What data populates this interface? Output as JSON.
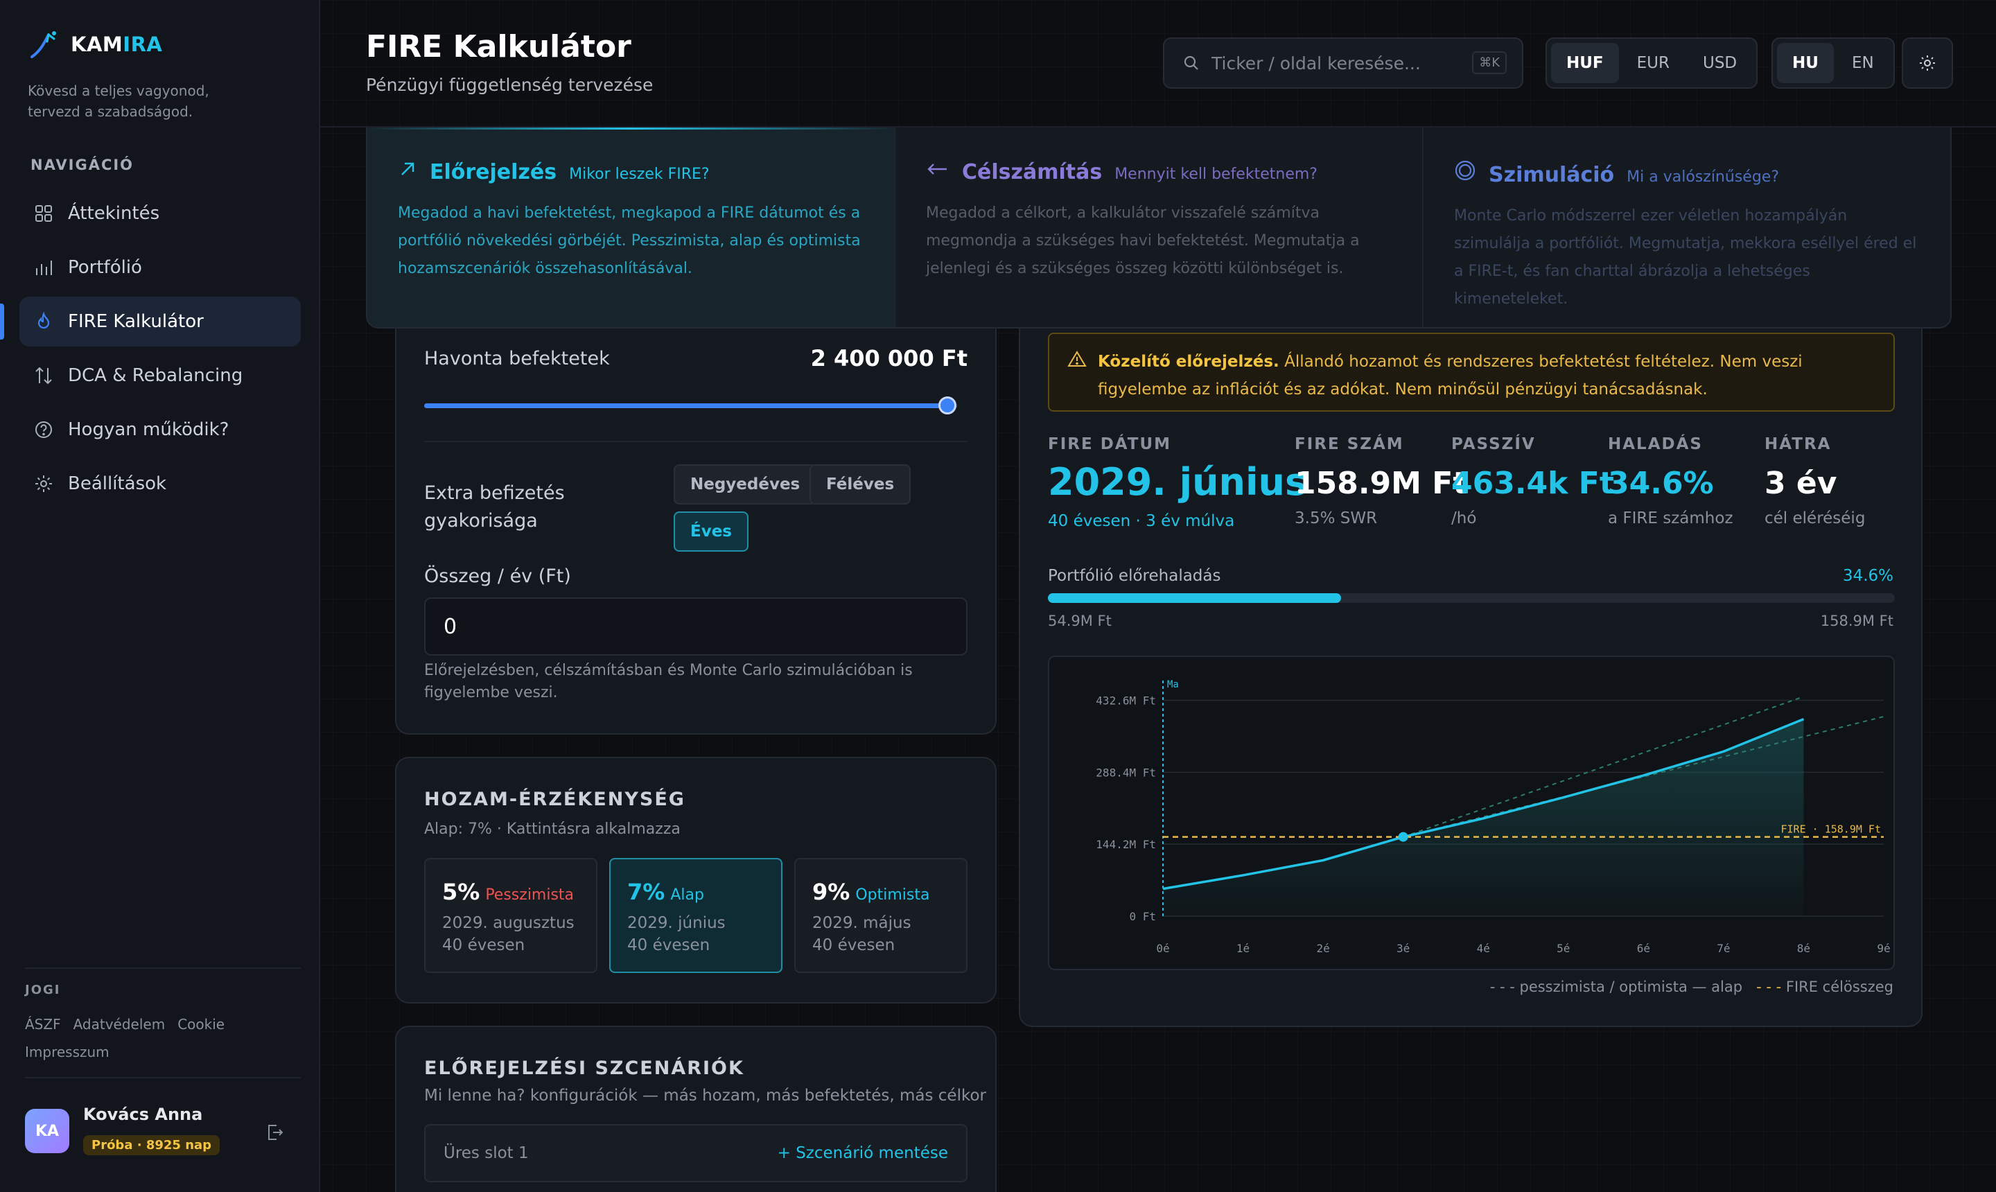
{
  "brand": {
    "name_a": "KAM",
    "name_b": "IRA",
    "tagline": "Kövesd a teljes vagyonod, tervezd a szabadságod."
  },
  "nav": {
    "title": "NAVIGÁCIÓ",
    "items": [
      {
        "label": "Áttekintés",
        "icon": "grid-icon"
      },
      {
        "label": "Portfólió",
        "icon": "bar-chart-icon"
      },
      {
        "label": "FIRE Kalkulátor",
        "icon": "flame-icon",
        "active": true
      },
      {
        "label": "DCA & Rebalancing",
        "icon": "arrows-icon"
      },
      {
        "label": "Hogyan működik?",
        "icon": "help-icon"
      },
      {
        "label": "Beállítások",
        "icon": "gear-icon"
      }
    ]
  },
  "legal": {
    "title": "JOGI",
    "links": [
      "ÁSZF",
      "Adatvédelem",
      "Cookie",
      "Impresszum"
    ]
  },
  "user": {
    "initials": "KA",
    "name": "Kovács Anna",
    "badge": "Próba · 8925 nap"
  },
  "header": {
    "title": "FIRE Kalkulátor",
    "subtitle": "Pénzügyi függetlenség tervezése",
    "search_placeholder": "Ticker / oldal keresése...",
    "search_kbd": "⌘K",
    "currencies": [
      "HUF",
      "EUR",
      "USD"
    ],
    "currency_selected": "HUF",
    "languages": [
      "HU",
      "EN"
    ],
    "language_selected": "HU"
  },
  "modes": [
    {
      "title": "Előrejelzés",
      "question": "Mikor leszek FIRE?",
      "desc": "Megadod a havi befektetést, megkapod a FIRE dátumot és a portfólió növekedési görbéjét. Pesszimista, alap és optimista hozamszcenáriók összehasonlításával.",
      "color": "#22c3e6"
    },
    {
      "title": "Célszámítás",
      "question": "Mennyit kell befektetnem?",
      "desc": "Megadod a célkort, a kalkulátor visszafelé számítva megmondja a szükséges havi befektetést. Megmutatja a jelenlegi és a szükséges összeg közötti különbséget is.",
      "color": "#8b7bd8"
    },
    {
      "title": "Szimuláció",
      "question": "Mi a valószínűsége?",
      "desc": "Monte Carlo módszerrel ezer véletlen hozampályán szimulálja a portfóliót. Megmutatja, mekkora eséllyel éred el a FIRE-t, és fan charttal ábrázolja a lehetséges kimeneteleket.",
      "color": "#5b7fd8"
    }
  ],
  "invest": {
    "label": "Havonta befektetek",
    "value": "2 400 000 Ft",
    "slider_fraction": 0.98
  },
  "extra": {
    "label": "Extra befizetés gyakorisága",
    "chips": [
      "Negyedéves",
      "Féléves",
      "Éves"
    ],
    "selected": "Éves",
    "amount_label": "Összeg / év (Ft)",
    "amount_value": "0",
    "note": "Előrejelzésben, célszámításban és Monte Carlo szimulációban is figyelembe veszi."
  },
  "sensitivity": {
    "title": "HOZAM-ÉRZÉKENYSÉG",
    "subtitle": "Alap: 7% · Kattintásra alkalmazza",
    "options": [
      {
        "pct": "5%",
        "name": "Pesszimista",
        "date": "2029. augusztus",
        "age": "40 évesen",
        "color": "#ef5350"
      },
      {
        "pct": "7%",
        "name": "Alap",
        "date": "2029. június",
        "age": "40 évesen",
        "color": "#22c3e6",
        "selected": true
      },
      {
        "pct": "9%",
        "name": "Optimista",
        "date": "2029. május",
        "age": "40 évesen",
        "color": "#22c3e6"
      }
    ]
  },
  "scenarios": {
    "title": "ELŐREJELZÉSI SZCENÁRIÓK",
    "subtitle": "Mi lenne ha? konfigurációk — más hozam, más befektetés, más célkor",
    "slot_label": "Üres slot 1",
    "save_label": "+ Szcenárió mentése"
  },
  "warning": {
    "bold": "Közelítő előrejelzés.",
    "text": " Állandó hozamot és rendszeres befektetést feltételez. Nem veszi figyelembe az inflációt és az adókat. Nem minősül pénzügyi tanácsadásnak."
  },
  "stats": [
    {
      "key": "FIRE DÁTUM",
      "value": "2029. június",
      "sub": "40 évesen · 3 év múlva",
      "color": "#22c3e6"
    },
    {
      "key": "FIRE SZÁM",
      "value": "158.9M Ft",
      "sub": "3.5% SWR",
      "color": "#ffffff"
    },
    {
      "key": "PASSZÍV",
      "value": "463.4k Ft",
      "sub": "/hó",
      "color": "#22c3e6"
    },
    {
      "key": "HALADÁS",
      "value": "34.6%",
      "sub": "a FIRE számhoz",
      "color": "#22c3e6"
    },
    {
      "key": "HÁTRA",
      "value": "3 év",
      "sub": "cél eléréséig",
      "color": "#ffffff"
    }
  ],
  "progress": {
    "label": "Portfólió előrehaladás",
    "pct_label": "34.6%",
    "fraction": 0.346,
    "min": "54.9M Ft",
    "max": "158.9M Ft"
  },
  "chart_data": {
    "type": "line",
    "x": [
      0,
      1,
      2,
      3,
      4,
      5,
      6,
      7,
      8,
      9
    ],
    "x_tick_labels": [
      "0é",
      "1é",
      "2é",
      "3é",
      "4é",
      "5é",
      "6é",
      "7é",
      "8é",
      "9é"
    ],
    "y_tick_labels": [
      "0 Ft",
      "144.2M Ft",
      "288.4M Ft",
      "432.6M Ft"
    ],
    "y_ticks": [
      0,
      144.2,
      288.4,
      432.6
    ],
    "ylim": [
      0,
      450
    ],
    "xlim": [
      0,
      9
    ],
    "marker_label": "Ma",
    "series": [
      {
        "name": "alap",
        "x": [
          0,
          1,
          2,
          3,
          4,
          5,
          6,
          7,
          8
        ],
        "values": [
          54.9,
          82,
          112,
          158.9,
          196,
          238,
          282,
          330,
          395
        ]
      },
      {
        "name": "pesszimista",
        "x": [
          3,
          9
        ],
        "values": [
          158.9,
          400
        ]
      },
      {
        "name": "optimista",
        "x": [
          3,
          8
        ],
        "values": [
          158.9,
          440
        ]
      }
    ],
    "target": {
      "value": 158.9,
      "label": "FIRE · 158.9M Ft"
    },
    "legend": "pesszimista / optimista — alap",
    "legend_target": "FIRE célösszeg"
  }
}
